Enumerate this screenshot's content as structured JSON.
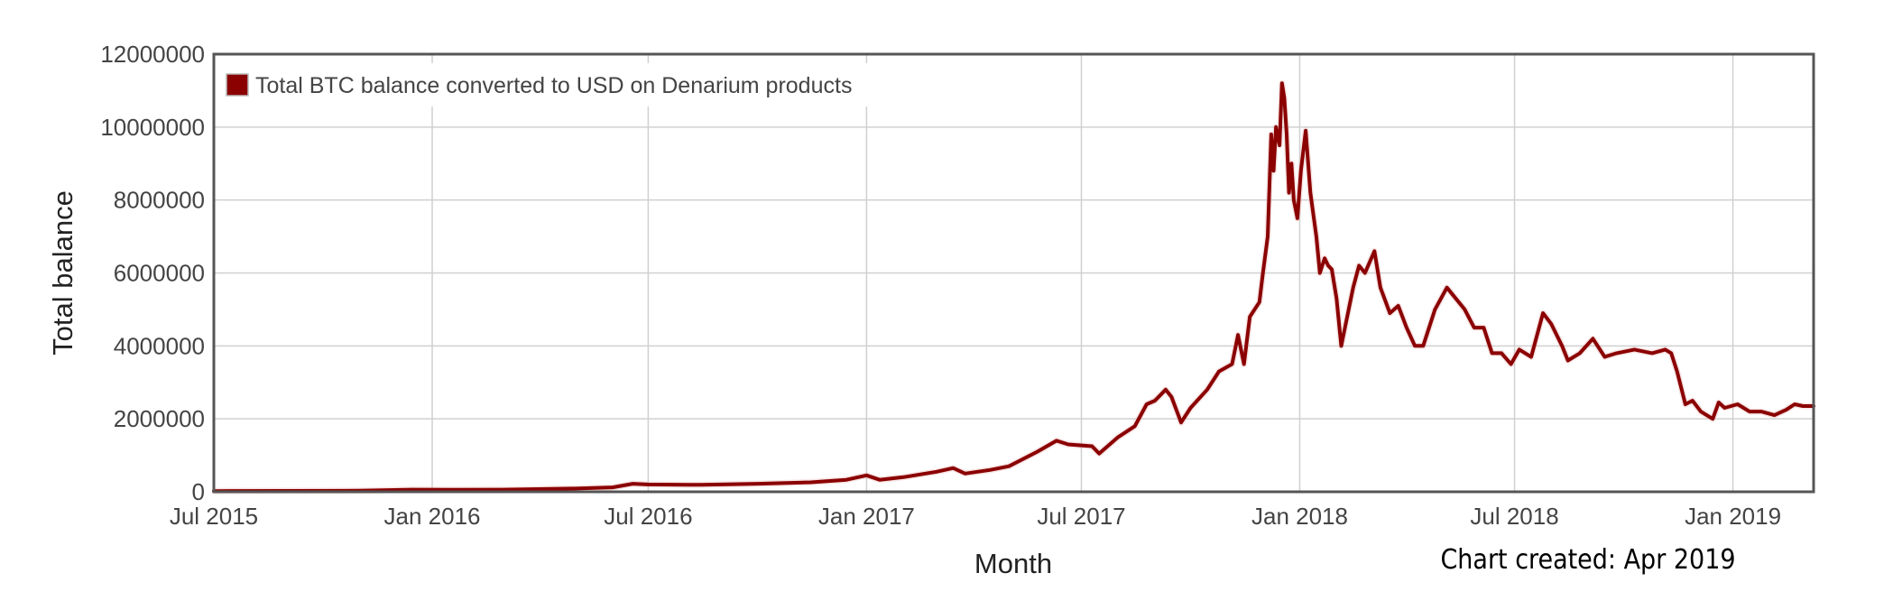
{
  "chart_data": {
    "type": "line",
    "xlabel": "Month",
    "ylabel": "Total balance",
    "note": "Chart created: Apr 2019",
    "x_ticks": [
      "Jul 2015",
      "Jan 2016",
      "Jul 2016",
      "Jan 2017",
      "Jul 2017",
      "Jan 2018",
      "Jul 2018",
      "Jan 2019"
    ],
    "y_ticks": [
      "0",
      "2000000",
      "4000000",
      "6000000",
      "8000000",
      "10000000",
      "12000000"
    ],
    "xlim": [
      "2015-07-01",
      "2019-03-10"
    ],
    "ylim": [
      0,
      12000000
    ],
    "grid": true,
    "legend": "top-left",
    "colors": {
      "series": "#8b0000",
      "frame": "#555555",
      "grid": "#d0d0d0"
    },
    "series": [
      {
        "name": "Total BTC balance converted to USD on Denarium products",
        "points": [
          [
            "2015-07-01",
            20000
          ],
          [
            "2015-09-01",
            25000
          ],
          [
            "2015-11-01",
            30000
          ],
          [
            "2015-12-15",
            60000
          ],
          [
            "2016-01-15",
            55000
          ],
          [
            "2016-03-01",
            60000
          ],
          [
            "2016-05-01",
            90000
          ],
          [
            "2016-06-01",
            120000
          ],
          [
            "2016-06-18",
            220000
          ],
          [
            "2016-07-01",
            200000
          ],
          [
            "2016-08-15",
            190000
          ],
          [
            "2016-10-01",
            220000
          ],
          [
            "2016-11-15",
            260000
          ],
          [
            "2016-12-15",
            330000
          ],
          [
            "2017-01-01",
            450000
          ],
          [
            "2017-01-12",
            330000
          ],
          [
            "2017-02-01",
            400000
          ],
          [
            "2017-03-01",
            550000
          ],
          [
            "2017-03-15",
            650000
          ],
          [
            "2017-03-25",
            500000
          ],
          [
            "2017-04-15",
            600000
          ],
          [
            "2017-05-01",
            700000
          ],
          [
            "2017-05-25",
            1100000
          ],
          [
            "2017-06-10",
            1400000
          ],
          [
            "2017-06-20",
            1300000
          ],
          [
            "2017-07-10",
            1250000
          ],
          [
            "2017-07-16",
            1050000
          ],
          [
            "2017-08-01",
            1500000
          ],
          [
            "2017-08-15",
            1800000
          ],
          [
            "2017-08-25",
            2400000
          ],
          [
            "2017-09-01",
            2500000
          ],
          [
            "2017-09-10",
            2800000
          ],
          [
            "2017-09-15",
            2600000
          ],
          [
            "2017-09-23",
            1900000
          ],
          [
            "2017-10-01",
            2300000
          ],
          [
            "2017-10-15",
            2800000
          ],
          [
            "2017-10-25",
            3300000
          ],
          [
            "2017-11-05",
            3500000
          ],
          [
            "2017-11-10",
            4300000
          ],
          [
            "2017-11-15",
            3500000
          ],
          [
            "2017-11-20",
            4800000
          ],
          [
            "2017-11-28",
            5200000
          ],
          [
            "2017-12-01",
            6000000
          ],
          [
            "2017-12-05",
            7000000
          ],
          [
            "2017-12-08",
            9800000
          ],
          [
            "2017-12-10",
            8800000
          ],
          [
            "2017-12-12",
            10000000
          ],
          [
            "2017-12-15",
            9500000
          ],
          [
            "2017-12-17",
            11200000
          ],
          [
            "2017-12-19",
            10800000
          ],
          [
            "2017-12-21",
            9800000
          ],
          [
            "2017-12-23",
            8200000
          ],
          [
            "2017-12-25",
            9000000
          ],
          [
            "2017-12-27",
            8000000
          ],
          [
            "2017-12-30",
            7500000
          ],
          [
            "2018-01-02",
            8800000
          ],
          [
            "2018-01-06",
            9900000
          ],
          [
            "2018-01-10",
            8200000
          ],
          [
            "2018-01-15",
            7000000
          ],
          [
            "2018-01-18",
            6000000
          ],
          [
            "2018-01-22",
            6400000
          ],
          [
            "2018-01-25",
            6200000
          ],
          [
            "2018-01-28",
            6100000
          ],
          [
            "2018-02-01",
            5300000
          ],
          [
            "2018-02-05",
            4000000
          ],
          [
            "2018-02-10",
            4800000
          ],
          [
            "2018-02-15",
            5600000
          ],
          [
            "2018-02-20",
            6200000
          ],
          [
            "2018-02-25",
            6000000
          ],
          [
            "2018-03-05",
            6600000
          ],
          [
            "2018-03-10",
            5600000
          ],
          [
            "2018-03-18",
            4900000
          ],
          [
            "2018-03-25",
            5100000
          ],
          [
            "2018-04-01",
            4500000
          ],
          [
            "2018-04-08",
            4000000
          ],
          [
            "2018-04-15",
            4000000
          ],
          [
            "2018-04-25",
            5000000
          ],
          [
            "2018-05-05",
            5600000
          ],
          [
            "2018-05-10",
            5400000
          ],
          [
            "2018-05-20",
            5000000
          ],
          [
            "2018-05-28",
            4500000
          ],
          [
            "2018-06-05",
            4500000
          ],
          [
            "2018-06-12",
            3800000
          ],
          [
            "2018-06-20",
            3800000
          ],
          [
            "2018-06-28",
            3500000
          ],
          [
            "2018-07-05",
            3900000
          ],
          [
            "2018-07-15",
            3700000
          ],
          [
            "2018-07-25",
            4900000
          ],
          [
            "2018-08-01",
            4600000
          ],
          [
            "2018-08-10",
            4000000
          ],
          [
            "2018-08-15",
            3600000
          ],
          [
            "2018-08-25",
            3800000
          ],
          [
            "2018-09-05",
            4200000
          ],
          [
            "2018-09-15",
            3700000
          ],
          [
            "2018-09-25",
            3800000
          ],
          [
            "2018-10-10",
            3900000
          ],
          [
            "2018-10-25",
            3800000
          ],
          [
            "2018-11-05",
            3900000
          ],
          [
            "2018-11-10",
            3800000
          ],
          [
            "2018-11-15",
            3300000
          ],
          [
            "2018-11-22",
            2400000
          ],
          [
            "2018-11-28",
            2500000
          ],
          [
            "2018-12-05",
            2200000
          ],
          [
            "2018-12-15",
            2000000
          ],
          [
            "2018-12-20",
            2450000
          ],
          [
            "2018-12-25",
            2300000
          ],
          [
            "2019-01-05",
            2400000
          ],
          [
            "2019-01-15",
            2200000
          ],
          [
            "2019-01-25",
            2200000
          ],
          [
            "2019-02-05",
            2100000
          ],
          [
            "2019-02-15",
            2250000
          ],
          [
            "2019-02-22",
            2400000
          ],
          [
            "2019-03-01",
            2350000
          ],
          [
            "2019-03-10",
            2350000
          ]
        ]
      }
    ]
  }
}
